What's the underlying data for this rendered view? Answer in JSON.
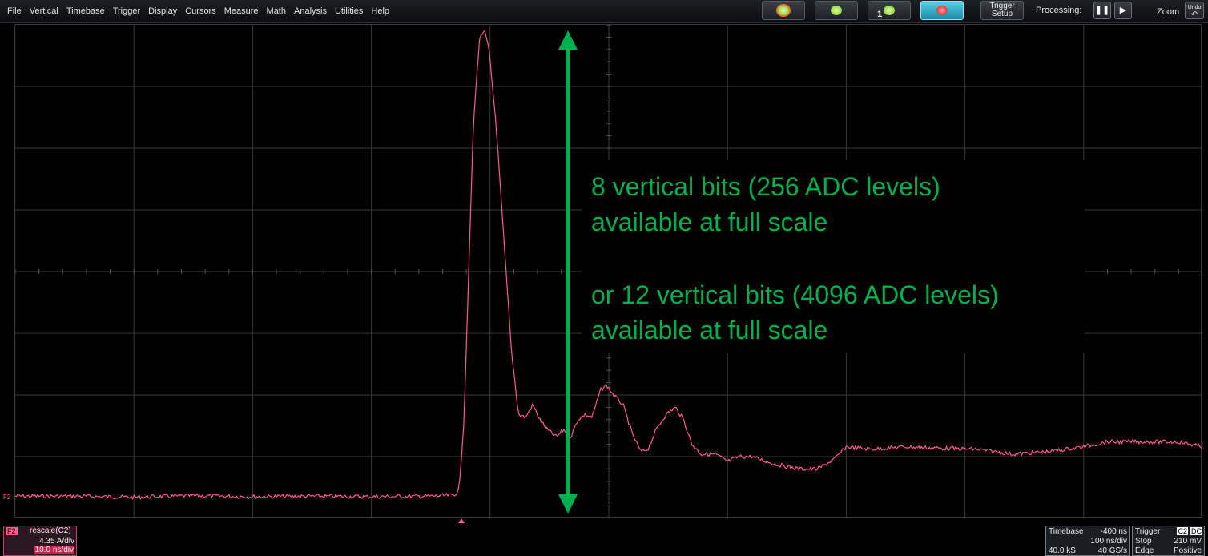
{
  "menu": [
    "File",
    "Vertical",
    "Timebase",
    "Trigger",
    "Display",
    "Cursors",
    "Measure",
    "Math",
    "Analysis",
    "Utilities",
    "Help"
  ],
  "toolbar": {
    "mode_button_4_number": "1",
    "trigger_setup": [
      "Trigger",
      "Setup"
    ],
    "processing_label": "Processing:",
    "zoom_label": "Zoom",
    "undo_label": "Undo"
  },
  "colors": {
    "trace": "#ff5a8c",
    "annotation": "#00b050",
    "grid": "#3a3a3a"
  },
  "trace": {
    "label": "F2",
    "trigger_position_fraction": 0.377,
    "description_points": [
      [
        0.0,
        0.955
      ],
      [
        0.05,
        0.955
      ],
      [
        0.1,
        0.957
      ],
      [
        0.15,
        0.954
      ],
      [
        0.2,
        0.956
      ],
      [
        0.25,
        0.955
      ],
      [
        0.3,
        0.956
      ],
      [
        0.35,
        0.955
      ],
      [
        0.37,
        0.953
      ],
      [
        0.374,
        0.94
      ],
      [
        0.378,
        0.8
      ],
      [
        0.382,
        0.5
      ],
      [
        0.386,
        0.2
      ],
      [
        0.391,
        0.03
      ],
      [
        0.395,
        0.01
      ],
      [
        0.399,
        0.05
      ],
      [
        0.405,
        0.2
      ],
      [
        0.412,
        0.45
      ],
      [
        0.418,
        0.66
      ],
      [
        0.424,
        0.79
      ],
      [
        0.43,
        0.795
      ],
      [
        0.436,
        0.77
      ],
      [
        0.442,
        0.8
      ],
      [
        0.448,
        0.82
      ],
      [
        0.456,
        0.835
      ],
      [
        0.462,
        0.82
      ],
      [
        0.468,
        0.835
      ],
      [
        0.474,
        0.8
      ],
      [
        0.48,
        0.79
      ],
      [
        0.486,
        0.795
      ],
      [
        0.493,
        0.74
      ],
      [
        0.498,
        0.73
      ],
      [
        0.504,
        0.75
      ],
      [
        0.512,
        0.77
      ],
      [
        0.52,
        0.83
      ],
      [
        0.527,
        0.865
      ],
      [
        0.533,
        0.86
      ],
      [
        0.54,
        0.82
      ],
      [
        0.548,
        0.79
      ],
      [
        0.556,
        0.775
      ],
      [
        0.563,
        0.8
      ],
      [
        0.57,
        0.85
      ],
      [
        0.578,
        0.87
      ],
      [
        0.59,
        0.87
      ],
      [
        0.6,
        0.885
      ],
      [
        0.61,
        0.875
      ],
      [
        0.62,
        0.875
      ],
      [
        0.64,
        0.89
      ],
      [
        0.66,
        0.9
      ],
      [
        0.676,
        0.9
      ],
      [
        0.69,
        0.88
      ],
      [
        0.7,
        0.855
      ],
      [
        0.72,
        0.86
      ],
      [
        0.75,
        0.855
      ],
      [
        0.78,
        0.858
      ],
      [
        0.81,
        0.86
      ],
      [
        0.84,
        0.87
      ],
      [
        0.87,
        0.865
      ],
      [
        0.9,
        0.855
      ],
      [
        0.92,
        0.845
      ],
      [
        0.95,
        0.845
      ],
      [
        0.98,
        0.845
      ],
      [
        1.0,
        0.855
      ]
    ]
  },
  "annotation": {
    "line1": "8 vertical bits (256 ADC levels)",
    "line2": "available at full scale",
    "line3": "or 12 vertical bits (4096 ADC levels)",
    "line4": "available at full scale"
  },
  "channel_box": {
    "tag": "F2",
    "name": "rescale(C2)",
    "vdiv": "4.35 A/div",
    "hdiv": "10.0 ns/div"
  },
  "timebase": {
    "title": "Timebase",
    "delay": "-400 ns",
    "tdiv": "100 ns/div",
    "samples": "40.0 kS",
    "rate": "40 GS/s"
  },
  "trigger": {
    "title": "Trigger",
    "source": "C2",
    "coupling": "DC",
    "mode": "Stop",
    "level": "210 mV",
    "type": "Edge",
    "slope": "Positive"
  }
}
